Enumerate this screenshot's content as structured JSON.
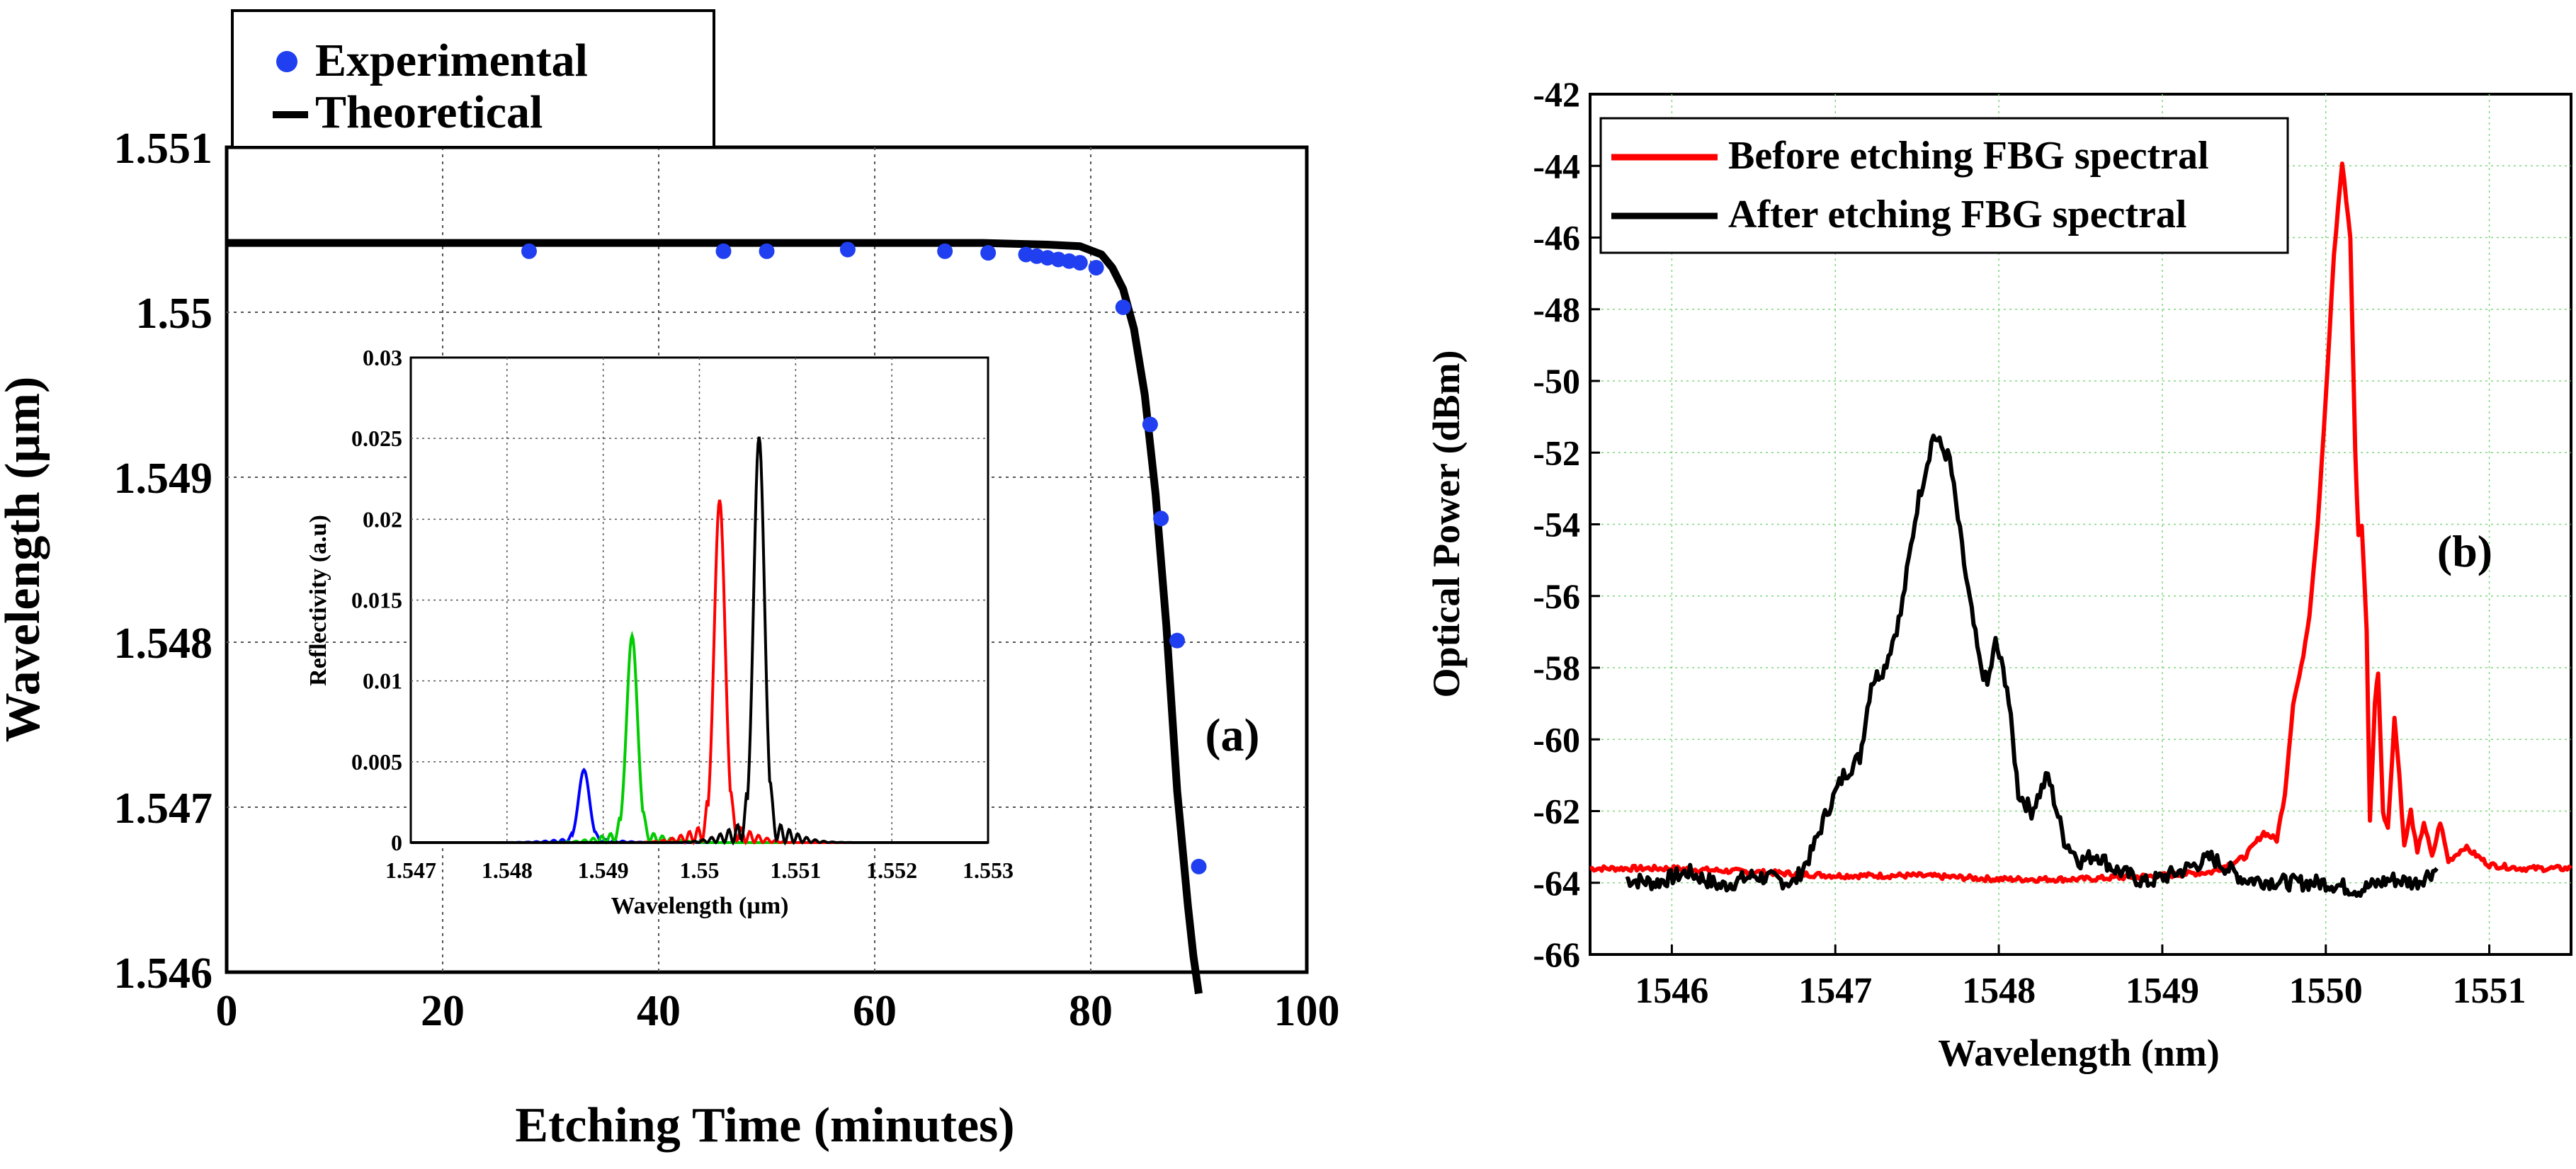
{
  "chart_data": [
    {
      "id": "a",
      "type": "scatter+line",
      "panel_label": "(a)",
      "xlabel": "Etching Time (minutes)",
      "ylabel": "Wavelength (µm)",
      "xlim": [
        0,
        100
      ],
      "ylim": [
        1.546,
        1.551
      ],
      "xticks": [
        0,
        20,
        40,
        60,
        80,
        100
      ],
      "xtick_labels": [
        "0",
        "20",
        "40",
        "60",
        "80",
        "100"
      ],
      "yticks": [
        1.546,
        1.547,
        1.548,
        1.549,
        1.55,
        1.551
      ],
      "ytick_labels": [
        "1.546",
        "1.547",
        "1.548",
        "1.549",
        "1.55",
        "1.551"
      ],
      "grid": true,
      "legend": [
        "Experimental",
        "Theoretical"
      ],
      "legend_position": "top-left, above plot",
      "series": [
        {
          "name": "Experimental",
          "style": "markers",
          "color": "#1f3ff0",
          "points": [
            [
              28,
              1.55037
            ],
            [
              46,
              1.55037
            ],
            [
              50,
              1.55037
            ],
            [
              57.5,
              1.55038
            ],
            [
              66.5,
              1.55037
            ],
            [
              70.5,
              1.55036
            ],
            [
              74,
              1.55035
            ],
            [
              75,
              1.55034
            ],
            [
              76,
              1.55033
            ],
            [
              77,
              1.55032
            ],
            [
              78,
              1.55031
            ],
            [
              79,
              1.5503
            ],
            [
              80.5,
              1.55027
            ],
            [
              83,
              1.55003
            ],
            [
              85.5,
              1.54932
            ],
            [
              86.5,
              1.54875
            ],
            [
              88,
              1.54801
            ],
            [
              90,
              1.54664
            ]
          ]
        },
        {
          "name": "Theoretical",
          "style": "line",
          "color": "#000000",
          "points": [
            [
              0,
              1.55042
            ],
            [
              60,
              1.55042
            ],
            [
              70,
              1.55042
            ],
            [
              76,
              1.55041
            ],
            [
              79,
              1.5504
            ],
            [
              81,
              1.55035
            ],
            [
              82,
              1.55027
            ],
            [
              83,
              1.55014
            ],
            [
              84,
              1.5499
            ],
            [
              85,
              1.5495
            ],
            [
              86,
              1.5489
            ],
            [
              87,
              1.5481
            ],
            [
              88,
              1.5471
            ],
            [
              89,
              1.5464
            ],
            [
              89.5,
              1.5461
            ],
            [
              90,
              1.54587
            ]
          ]
        }
      ],
      "inset": {
        "type": "line",
        "xlabel": "Wavelength (µm)",
        "ylabel": "Reflectivity (a.u)",
        "xlim": [
          1.547,
          1.553
        ],
        "ylim": [
          0,
          0.03
        ],
        "xticks": [
          1.547,
          1.548,
          1.549,
          1.55,
          1.551,
          1.552,
          1.553
        ],
        "xtick_labels": [
          "1.547",
          "1.548",
          "1.549",
          "1.55",
          "1.551",
          "1.552",
          "1.553"
        ],
        "yticks": [
          0,
          0.005,
          0.01,
          0.015,
          0.02,
          0.025,
          0.03
        ],
        "ytick_labels": [
          "0",
          "0.005",
          "0.01",
          "0.015",
          "0.02",
          "0.025",
          "0.03"
        ],
        "grid": true,
        "series": [
          {
            "name": "blue",
            "color": "#0000ff",
            "center": 1.5488,
            "peak": 0.0045,
            "width": 8e-05
          },
          {
            "name": "green",
            "color": "#00cc00",
            "center": 1.5493,
            "peak": 0.0128,
            "width": 8e-05
          },
          {
            "name": "red",
            "color": "#ff0000",
            "center": 1.55021,
            "peak": 0.0212,
            "width": 8e-05
          },
          {
            "name": "black",
            "color": "#000000",
            "center": 1.55062,
            "peak": 0.0251,
            "width": 8e-05
          }
        ]
      }
    },
    {
      "id": "b",
      "type": "line",
      "panel_label": "(b)",
      "xlabel": "Wavelength (nm)",
      "ylabel": "Optical Power (dBm)",
      "xlim": [
        1545.5,
        1551.5
      ],
      "ylim": [
        -66,
        -42
      ],
      "xticks": [
        1546,
        1547,
        1548,
        1549,
        1550,
        1551
      ],
      "xtick_labels": [
        "1546",
        "1547",
        "1548",
        "1549",
        "1550",
        "1551"
      ],
      "yticks": [
        -66,
        -64,
        -62,
        -60,
        -58,
        -56,
        -54,
        -52,
        -50,
        -48,
        -46,
        -44,
        -42
      ],
      "ytick_labels": [
        "-66",
        "-64",
        "-62",
        "-60",
        "-58",
        "-56",
        "-54",
        "-52",
        "-50",
        "-48",
        "-46",
        "-44",
        "-42"
      ],
      "grid": true,
      "legend": [
        "Before etching FBG spectral",
        "After etching FBG spectral"
      ],
      "legend_position": "top-left",
      "series": [
        {
          "name": "Before etching FBG spectral",
          "color": "#ff0000",
          "points": [
            [
              1545.5,
              -63.6
            ],
            [
              1546.0,
              -63.6
            ],
            [
              1546.5,
              -63.7
            ],
            [
              1547.0,
              -63.8
            ],
            [
              1547.5,
              -63.8
            ],
            [
              1548.0,
              -63.9
            ],
            [
              1548.5,
              -63.9
            ],
            [
              1549.0,
              -63.8
            ],
            [
              1549.3,
              -63.7
            ],
            [
              1549.5,
              -63.3
            ],
            [
              1549.62,
              -62.6
            ],
            [
              1549.7,
              -62.8
            ],
            [
              1549.75,
              -61.5
            ],
            [
              1549.8,
              -59.0
            ],
            [
              1549.85,
              -58.0
            ],
            [
              1549.9,
              -56.5
            ],
            [
              1549.95,
              -54.0
            ],
            [
              1550.0,
              -50.5
            ],
            [
              1550.05,
              -46.5
            ],
            [
              1550.1,
              -43.9
            ],
            [
              1550.15,
              -46.0
            ],
            [
              1550.18,
              -52.0
            ],
            [
              1550.2,
              -54.3
            ],
            [
              1550.22,
              -54.0
            ],
            [
              1550.25,
              -57.0
            ],
            [
              1550.27,
              -62.3
            ],
            [
              1550.3,
              -59.0
            ],
            [
              1550.32,
              -58.1
            ],
            [
              1550.35,
              -62.0
            ],
            [
              1550.38,
              -62.5
            ],
            [
              1550.42,
              -59.4
            ],
            [
              1550.45,
              -61.0
            ],
            [
              1550.48,
              -63.0
            ],
            [
              1550.52,
              -62.0
            ],
            [
              1550.56,
              -63.2
            ],
            [
              1550.6,
              -62.3
            ],
            [
              1550.65,
              -63.3
            ],
            [
              1550.7,
              -62.3
            ],
            [
              1550.75,
              -63.4
            ],
            [
              1550.85,
              -63.0
            ],
            [
              1551.0,
              -63.5
            ],
            [
              1551.2,
              -63.6
            ],
            [
              1551.5,
              -63.6
            ]
          ]
        },
        {
          "name": "After etching FBG spectral",
          "color": "#000000",
          "points": [
            [
              1545.72,
              -63.9
            ],
            [
              1545.9,
              -64.0
            ],
            [
              1546.1,
              -63.7
            ],
            [
              1546.3,
              -64.1
            ],
            [
              1546.5,
              -63.8
            ],
            [
              1546.75,
              -64.0
            ],
            [
              1546.85,
              -63.2
            ],
            [
              1546.95,
              -62.0
            ],
            [
              1547.05,
              -61.0
            ],
            [
              1547.15,
              -60.5
            ],
            [
              1547.22,
              -58.4
            ],
            [
              1547.3,
              -58.0
            ],
            [
              1547.4,
              -56.5
            ],
            [
              1547.5,
              -53.5
            ],
            [
              1547.6,
              -51.5
            ],
            [
              1547.7,
              -52.2
            ],
            [
              1547.8,
              -55.5
            ],
            [
              1547.88,
              -57.8
            ],
            [
              1547.93,
              -58.5
            ],
            [
              1547.98,
              -57.3
            ],
            [
              1548.05,
              -58.5
            ],
            [
              1548.12,
              -61.5
            ],
            [
              1548.2,
              -62.0
            ],
            [
              1548.3,
              -61.0
            ],
            [
              1548.4,
              -62.8
            ],
            [
              1548.5,
              -63.4
            ],
            [
              1548.6,
              -63.2
            ],
            [
              1548.7,
              -63.6
            ],
            [
              1548.9,
              -64.0
            ],
            [
              1549.1,
              -63.7
            ],
            [
              1549.3,
              -63.3
            ],
            [
              1549.5,
              -63.9
            ],
            [
              1549.8,
              -64.0
            ],
            [
              1550.0,
              -64.0
            ],
            [
              1550.2,
              -64.2
            ],
            [
              1550.4,
              -63.9
            ],
            [
              1550.55,
              -64.0
            ],
            [
              1550.68,
              -63.6
            ]
          ]
        }
      ]
    }
  ]
}
